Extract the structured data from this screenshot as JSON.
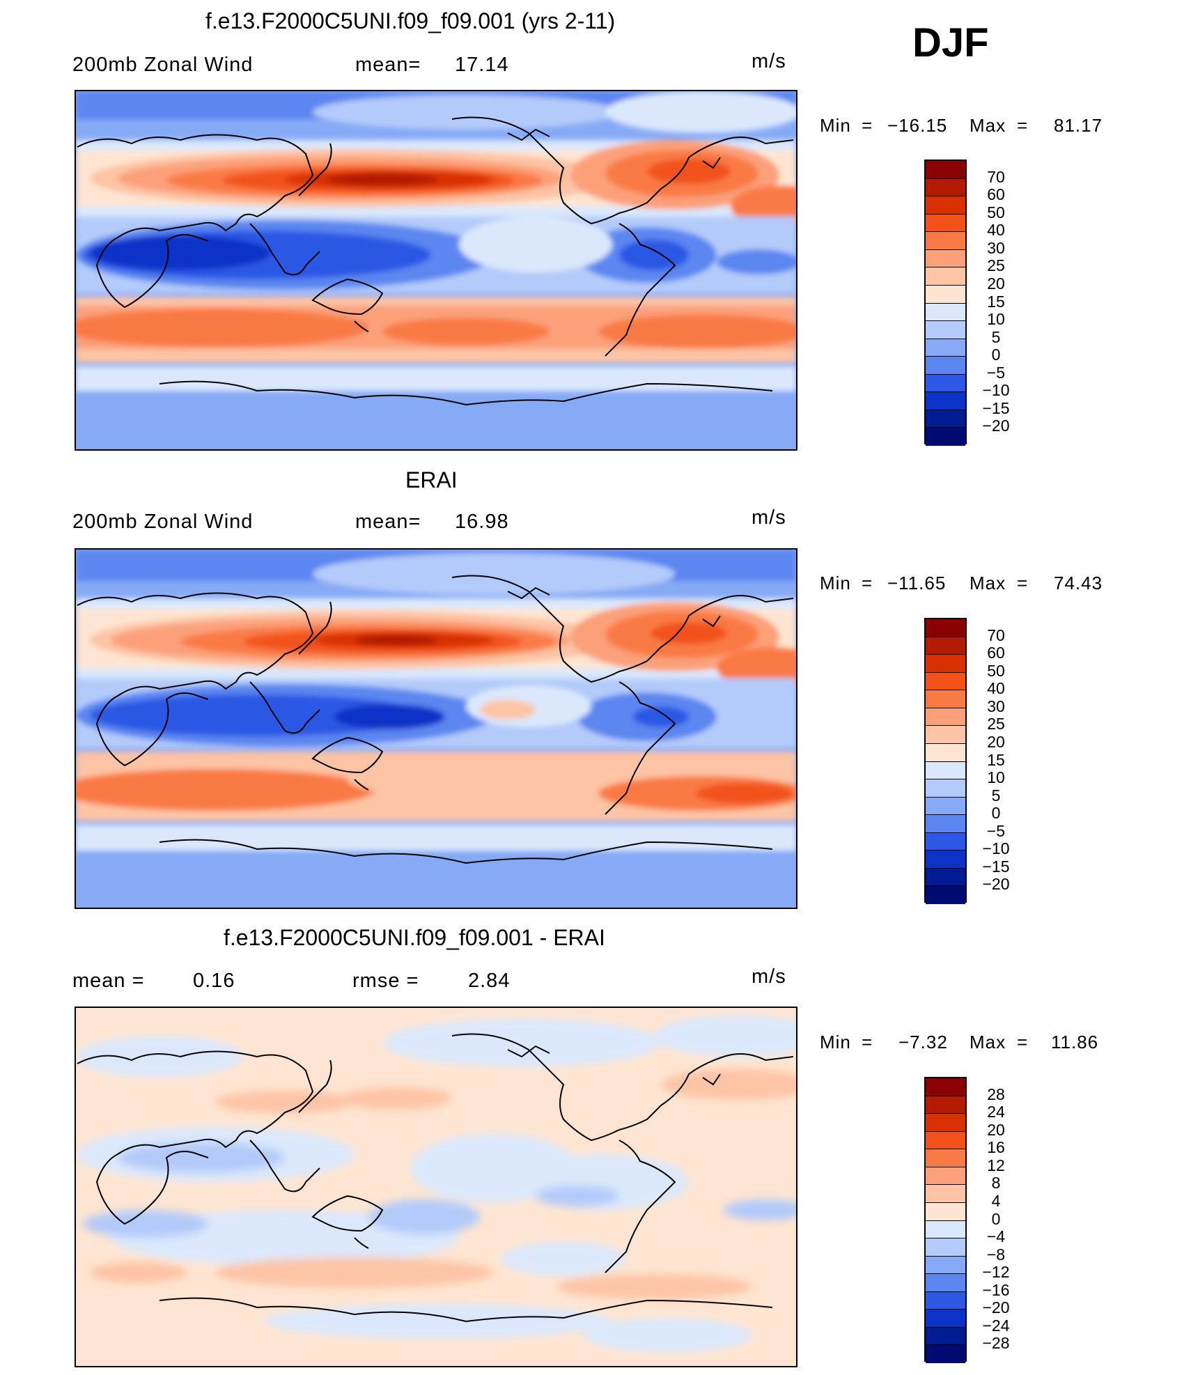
{
  "season": "DJF",
  "units": "m/s",
  "panels": [
    {
      "title": "f.e13.F2000C5UNI.f09_f09.001 (yrs 2-11)",
      "left_label": "200mb Zonal Wind",
      "mid_label": "mean=",
      "mid_value": "17.14",
      "units": "m/s",
      "min_label": "Min",
      "min_value": "−16.15",
      "max_label": "Max",
      "max_value": "81.17",
      "colorbar": {
        "labels": [
          "70",
          "60",
          "50",
          "40",
          "30",
          "25",
          "20",
          "15",
          "10",
          "5",
          "0",
          "−5",
          "−10",
          "−15",
          "−20"
        ],
        "colors": [
          "#8b0000",
          "#b31b00",
          "#d83000",
          "#f2521a",
          "#fa7a45",
          "#fca07a",
          "#fdc4a5",
          "#fee5d1",
          "#dbe8fc",
          "#b3cbfa",
          "#86aaf6",
          "#5b86f0",
          "#2c58e5",
          "#0b33c8",
          "#001c95",
          "#000a70"
        ]
      }
    },
    {
      "title": "ERAI",
      "left_label": "200mb Zonal Wind",
      "mid_label": "mean=",
      "mid_value": "16.98",
      "units": "m/s",
      "min_label": "Min",
      "min_value": "−11.65",
      "max_label": "Max",
      "max_value": "74.43",
      "colorbar": {
        "labels": [
          "70",
          "60",
          "50",
          "40",
          "30",
          "25",
          "20",
          "15",
          "10",
          "5",
          "0",
          "−5",
          "−10",
          "−15",
          "−20"
        ],
        "colors": [
          "#8b0000",
          "#b31b00",
          "#d83000",
          "#f2521a",
          "#fa7a45",
          "#fca07a",
          "#fdc4a5",
          "#fee5d1",
          "#dbe8fc",
          "#b3cbfa",
          "#86aaf6",
          "#5b86f0",
          "#2c58e5",
          "#0b33c8",
          "#001c95",
          "#000a70"
        ]
      }
    },
    {
      "title": "f.e13.F2000C5UNI.f09_f09.001 - ERAI",
      "left_label": "mean =",
      "left_value": "0.16",
      "mid_label": "rmse =",
      "mid_value": "2.84",
      "units": "m/s",
      "min_label": "Min",
      "min_value": "−7.32",
      "max_label": "Max",
      "max_value": "11.86",
      "colorbar": {
        "labels": [
          "28",
          "24",
          "20",
          "16",
          "12",
          "8",
          "4",
          "0",
          "−4",
          "−8",
          "−12",
          "−16",
          "−20",
          "−24",
          "−28"
        ],
        "colors": [
          "#8b0000",
          "#b31b00",
          "#d83000",
          "#f2521a",
          "#fa7a45",
          "#fca07a",
          "#fdc4a5",
          "#fee5d1",
          "#dbe8fc",
          "#b3cbfa",
          "#86aaf6",
          "#5b86f0",
          "#2c58e5",
          "#0b33c8",
          "#001c95",
          "#000a70"
        ]
      }
    }
  ]
}
